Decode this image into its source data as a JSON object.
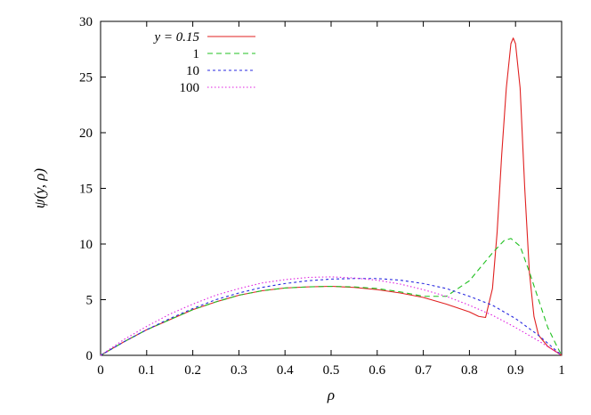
{
  "chart_data": {
    "type": "line",
    "title": "",
    "xlabel": "ρ",
    "ylabel": "ψ(y, ρ)",
    "xlim": [
      0,
      1
    ],
    "ylim": [
      0,
      30
    ],
    "grid": false,
    "legend_position": "top-left",
    "x_ticks": [
      "0",
      "0.1",
      "0.2",
      "0.3",
      "0.4",
      "0.5",
      "0.6",
      "0.7",
      "0.8",
      "0.9",
      "1"
    ],
    "y_ticks": [
      "0",
      "5",
      "10",
      "15",
      "20",
      "25",
      "30"
    ],
    "series": [
      {
        "name": "y = 0.15",
        "color": "#e02020",
        "dash": "solid",
        "points": [
          [
            0,
            0
          ],
          [
            0.05,
            1.2
          ],
          [
            0.1,
            2.3
          ],
          [
            0.15,
            3.2
          ],
          [
            0.2,
            4.1
          ],
          [
            0.25,
            4.8
          ],
          [
            0.3,
            5.4
          ],
          [
            0.35,
            5.8
          ],
          [
            0.4,
            6.05
          ],
          [
            0.45,
            6.15
          ],
          [
            0.5,
            6.2
          ],
          [
            0.55,
            6.1
          ],
          [
            0.6,
            5.9
          ],
          [
            0.65,
            5.6
          ],
          [
            0.7,
            5.2
          ],
          [
            0.75,
            4.6
          ],
          [
            0.8,
            3.9
          ],
          [
            0.82,
            3.5
          ],
          [
            0.835,
            3.4
          ],
          [
            0.85,
            6.0
          ],
          [
            0.86,
            11.0
          ],
          [
            0.87,
            18.0
          ],
          [
            0.88,
            24.0
          ],
          [
            0.89,
            28.0
          ],
          [
            0.895,
            28.5
          ],
          [
            0.9,
            28.0
          ],
          [
            0.91,
            24.0
          ],
          [
            0.92,
            15.0
          ],
          [
            0.93,
            7.5
          ],
          [
            0.94,
            3.5
          ],
          [
            0.95,
            1.8
          ],
          [
            0.97,
            0.8
          ],
          [
            1,
            0
          ]
        ]
      },
      {
        "name": "1",
        "color": "#20c020",
        "dash": "6,4",
        "points": [
          [
            0,
            0
          ],
          [
            0.05,
            1.2
          ],
          [
            0.1,
            2.3
          ],
          [
            0.15,
            3.2
          ],
          [
            0.2,
            4.1
          ],
          [
            0.25,
            4.8
          ],
          [
            0.3,
            5.4
          ],
          [
            0.35,
            5.8
          ],
          [
            0.4,
            6.05
          ],
          [
            0.45,
            6.15
          ],
          [
            0.5,
            6.2
          ],
          [
            0.55,
            6.15
          ],
          [
            0.6,
            6.0
          ],
          [
            0.65,
            5.7
          ],
          [
            0.7,
            5.3
          ],
          [
            0.75,
            5.3
          ],
          [
            0.8,
            6.7
          ],
          [
            0.85,
            9.2
          ],
          [
            0.875,
            10.3
          ],
          [
            0.89,
            10.5
          ],
          [
            0.91,
            9.8
          ],
          [
            0.93,
            7.5
          ],
          [
            0.95,
            5.0
          ],
          [
            0.97,
            2.5
          ],
          [
            0.99,
            0.8
          ],
          [
            1,
            0
          ]
        ]
      },
      {
        "name": "10",
        "color": "#2a2ae0",
        "dash": "3,3",
        "points": [
          [
            0,
            0
          ],
          [
            0.05,
            1.2
          ],
          [
            0.1,
            2.3
          ],
          [
            0.15,
            3.3
          ],
          [
            0.2,
            4.2
          ],
          [
            0.25,
            5.0
          ],
          [
            0.3,
            5.6
          ],
          [
            0.35,
            6.1
          ],
          [
            0.4,
            6.45
          ],
          [
            0.45,
            6.7
          ],
          [
            0.5,
            6.85
          ],
          [
            0.55,
            6.9
          ],
          [
            0.6,
            6.9
          ],
          [
            0.65,
            6.75
          ],
          [
            0.7,
            6.45
          ],
          [
            0.75,
            6.0
          ],
          [
            0.8,
            5.3
          ],
          [
            0.85,
            4.5
          ],
          [
            0.9,
            3.3
          ],
          [
            0.95,
            1.8
          ],
          [
            1,
            0
          ]
        ]
      },
      {
        "name": "100",
        "color": "#e020e0",
        "dash": "1.5,2.5",
        "points": [
          [
            0,
            0
          ],
          [
            0.05,
            1.4
          ],
          [
            0.1,
            2.6
          ],
          [
            0.15,
            3.7
          ],
          [
            0.2,
            4.6
          ],
          [
            0.25,
            5.4
          ],
          [
            0.3,
            6.0
          ],
          [
            0.35,
            6.5
          ],
          [
            0.4,
            6.8
          ],
          [
            0.45,
            7.0
          ],
          [
            0.5,
            7.05
          ],
          [
            0.55,
            6.95
          ],
          [
            0.6,
            6.75
          ],
          [
            0.65,
            6.4
          ],
          [
            0.7,
            5.9
          ],
          [
            0.75,
            5.3
          ],
          [
            0.8,
            4.5
          ],
          [
            0.85,
            3.6
          ],
          [
            0.9,
            2.5
          ],
          [
            0.95,
            1.3
          ],
          [
            1,
            0
          ]
        ]
      }
    ]
  }
}
